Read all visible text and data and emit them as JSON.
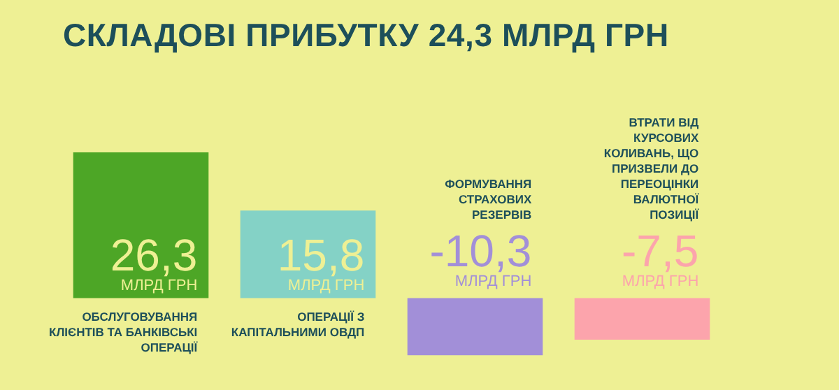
{
  "chart_data": {
    "type": "bar",
    "title": "СКЛАДОВІ ПРИБУТКУ 24,3 МЛРД ГРН",
    "categories": [
      "ОБСЛУГОВУВАННЯ КЛІЄНТІВ ТА БАНКІВСЬКІ ОПЕРАЦІЇ",
      "ОПЕРАЦІЇ З КАПІТАЛЬНИМИ ОВДП",
      "ФОРМУВАННЯ СТРАХОВИХ РЕЗЕРВІВ",
      "ВТРАТИ ВІД КУРСОВИХ КОЛИВАНЬ, ЩО ПРИЗВЕЛИ ДО ПЕРЕОЦІНКИ ВАЛЮТНОЇ ПОЗИЦІЇ"
    ],
    "values": [
      26.3,
      15.8,
      -10.3,
      -7.5
    ],
    "colors": [
      "#4da626",
      "#84d2c6",
      "#a28fd8",
      "#fca4ac"
    ],
    "value_labels": [
      "26,3",
      "15,8",
      "-10,3",
      "-7,5"
    ],
    "annotations": [
      "МЛРД ГРН",
      "МЛРД ГРН",
      "МЛРД ГРН",
      "МЛРД ГРН"
    ]
  }
}
